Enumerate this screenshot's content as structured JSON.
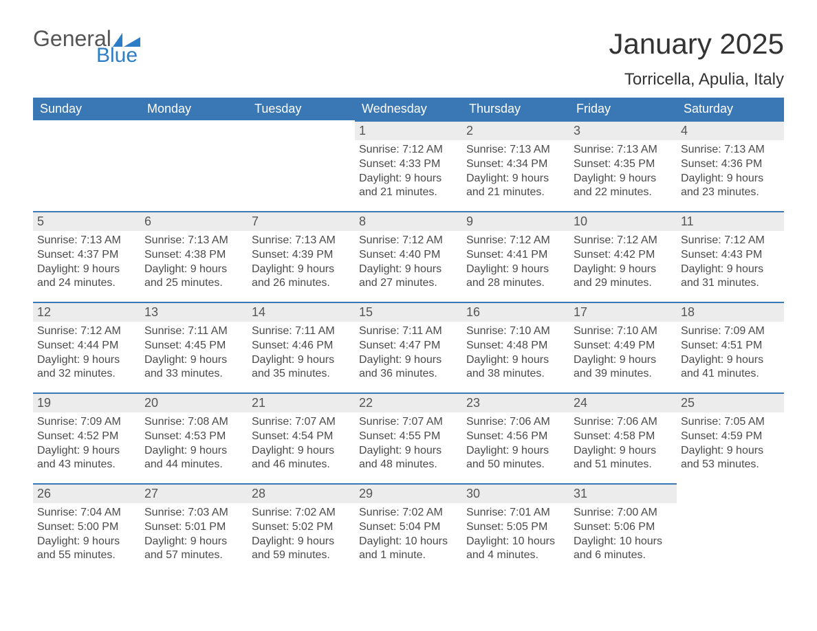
{
  "logo": {
    "text1": "General",
    "text2": "Blue",
    "mark_color": "#2d7dc6",
    "text1_color": "#555555"
  },
  "title": "January 2025",
  "location": "Torricella, Apulia, Italy",
  "colors": {
    "header_bg": "#3a78b5",
    "header_text": "#ffffff",
    "daynum_bg": "#ececec",
    "daynum_border": "#3a78b5",
    "body_text": "#4a4a4a",
    "page_bg": "#ffffff"
  },
  "fonts": {
    "title_size": 42,
    "location_size": 24,
    "header_size": 18,
    "body_size": 16
  },
  "weekdays": [
    "Sunday",
    "Monday",
    "Tuesday",
    "Wednesday",
    "Thursday",
    "Friday",
    "Saturday"
  ],
  "weeks": [
    [
      null,
      null,
      null,
      {
        "n": "1",
        "sunrise": "7:12 AM",
        "sunset": "4:33 PM",
        "daylight": "9 hours and 21 minutes."
      },
      {
        "n": "2",
        "sunrise": "7:13 AM",
        "sunset": "4:34 PM",
        "daylight": "9 hours and 21 minutes."
      },
      {
        "n": "3",
        "sunrise": "7:13 AM",
        "sunset": "4:35 PM",
        "daylight": "9 hours and 22 minutes."
      },
      {
        "n": "4",
        "sunrise": "7:13 AM",
        "sunset": "4:36 PM",
        "daylight": "9 hours and 23 minutes."
      }
    ],
    [
      {
        "n": "5",
        "sunrise": "7:13 AM",
        "sunset": "4:37 PM",
        "daylight": "9 hours and 24 minutes."
      },
      {
        "n": "6",
        "sunrise": "7:13 AM",
        "sunset": "4:38 PM",
        "daylight": "9 hours and 25 minutes."
      },
      {
        "n": "7",
        "sunrise": "7:13 AM",
        "sunset": "4:39 PM",
        "daylight": "9 hours and 26 minutes."
      },
      {
        "n": "8",
        "sunrise": "7:12 AM",
        "sunset": "4:40 PM",
        "daylight": "9 hours and 27 minutes."
      },
      {
        "n": "9",
        "sunrise": "7:12 AM",
        "sunset": "4:41 PM",
        "daylight": "9 hours and 28 minutes."
      },
      {
        "n": "10",
        "sunrise": "7:12 AM",
        "sunset": "4:42 PM",
        "daylight": "9 hours and 29 minutes."
      },
      {
        "n": "11",
        "sunrise": "7:12 AM",
        "sunset": "4:43 PM",
        "daylight": "9 hours and 31 minutes."
      }
    ],
    [
      {
        "n": "12",
        "sunrise": "7:12 AM",
        "sunset": "4:44 PM",
        "daylight": "9 hours and 32 minutes."
      },
      {
        "n": "13",
        "sunrise": "7:11 AM",
        "sunset": "4:45 PM",
        "daylight": "9 hours and 33 minutes."
      },
      {
        "n": "14",
        "sunrise": "7:11 AM",
        "sunset": "4:46 PM",
        "daylight": "9 hours and 35 minutes."
      },
      {
        "n": "15",
        "sunrise": "7:11 AM",
        "sunset": "4:47 PM",
        "daylight": "9 hours and 36 minutes."
      },
      {
        "n": "16",
        "sunrise": "7:10 AM",
        "sunset": "4:48 PM",
        "daylight": "9 hours and 38 minutes."
      },
      {
        "n": "17",
        "sunrise": "7:10 AM",
        "sunset": "4:49 PM",
        "daylight": "9 hours and 39 minutes."
      },
      {
        "n": "18",
        "sunrise": "7:09 AM",
        "sunset": "4:51 PM",
        "daylight": "9 hours and 41 minutes."
      }
    ],
    [
      {
        "n": "19",
        "sunrise": "7:09 AM",
        "sunset": "4:52 PM",
        "daylight": "9 hours and 43 minutes."
      },
      {
        "n": "20",
        "sunrise": "7:08 AM",
        "sunset": "4:53 PM",
        "daylight": "9 hours and 44 minutes."
      },
      {
        "n": "21",
        "sunrise": "7:07 AM",
        "sunset": "4:54 PM",
        "daylight": "9 hours and 46 minutes."
      },
      {
        "n": "22",
        "sunrise": "7:07 AM",
        "sunset": "4:55 PM",
        "daylight": "9 hours and 48 minutes."
      },
      {
        "n": "23",
        "sunrise": "7:06 AM",
        "sunset": "4:56 PM",
        "daylight": "9 hours and 50 minutes."
      },
      {
        "n": "24",
        "sunrise": "7:06 AM",
        "sunset": "4:58 PM",
        "daylight": "9 hours and 51 minutes."
      },
      {
        "n": "25",
        "sunrise": "7:05 AM",
        "sunset": "4:59 PM",
        "daylight": "9 hours and 53 minutes."
      }
    ],
    [
      {
        "n": "26",
        "sunrise": "7:04 AM",
        "sunset": "5:00 PM",
        "daylight": "9 hours and 55 minutes."
      },
      {
        "n": "27",
        "sunrise": "7:03 AM",
        "sunset": "5:01 PM",
        "daylight": "9 hours and 57 minutes."
      },
      {
        "n": "28",
        "sunrise": "7:02 AM",
        "sunset": "5:02 PM",
        "daylight": "9 hours and 59 minutes."
      },
      {
        "n": "29",
        "sunrise": "7:02 AM",
        "sunset": "5:04 PM",
        "daylight": "10 hours and 1 minute."
      },
      {
        "n": "30",
        "sunrise": "7:01 AM",
        "sunset": "5:05 PM",
        "daylight": "10 hours and 4 minutes."
      },
      {
        "n": "31",
        "sunrise": "7:00 AM",
        "sunset": "5:06 PM",
        "daylight": "10 hours and 6 minutes."
      },
      null
    ]
  ],
  "labels": {
    "sunrise": "Sunrise:",
    "sunset": "Sunset:",
    "daylight": "Daylight:"
  }
}
